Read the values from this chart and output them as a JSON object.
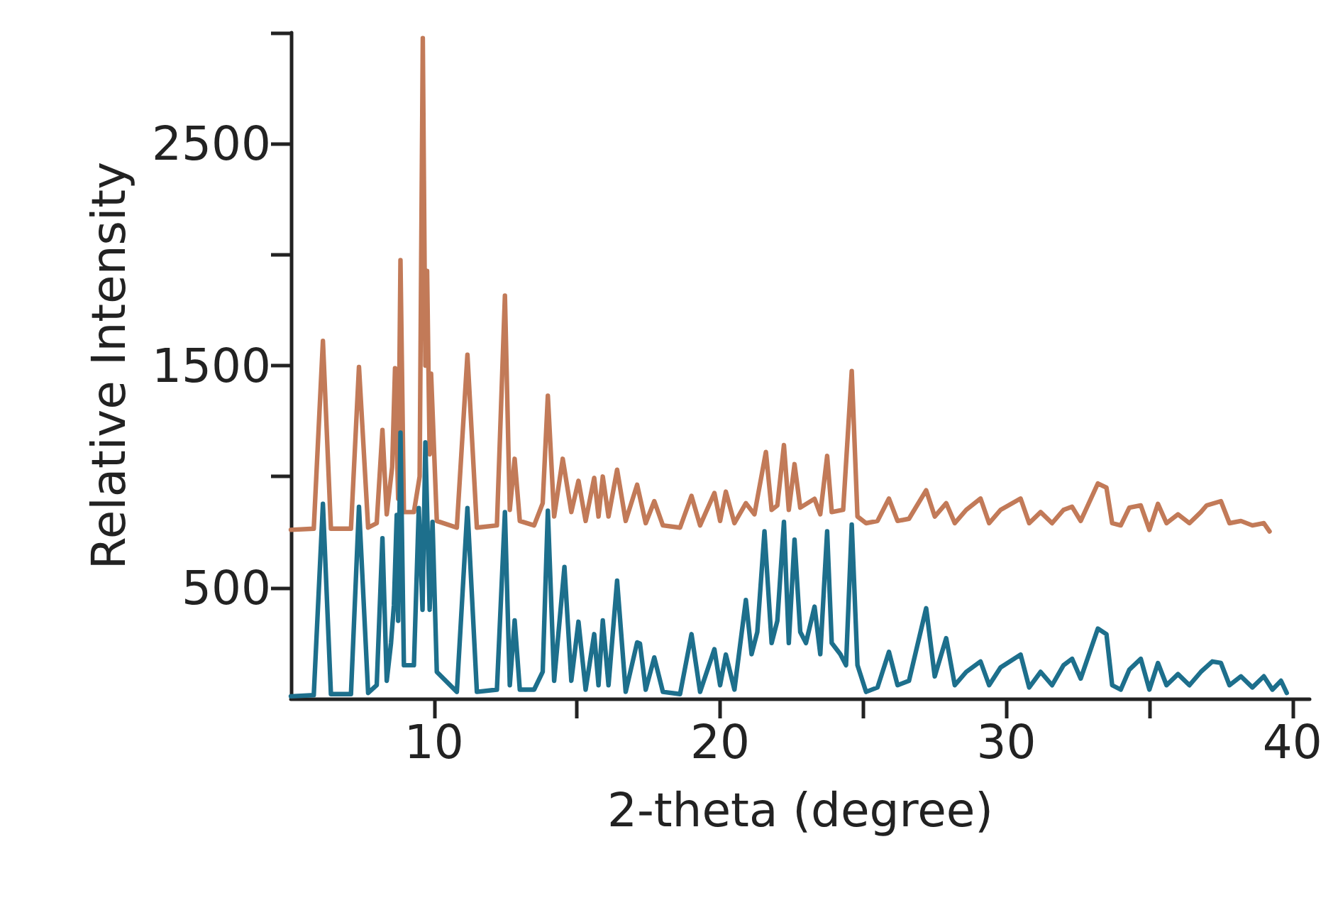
{
  "chart_data": {
    "type": "line",
    "xlabel": "2-theta (degree)",
    "ylabel": "Relative Intensity",
    "xlim": [
      5,
      40.6
    ],
    "xticks": [
      10,
      {
        "value": 15,
        "label": null
      },
      20,
      {
        "value": 25,
        "label": null
      },
      30,
      {
        "value": 35,
        "label": null
      },
      40
    ],
    "ylim": [
      0,
      3000
    ],
    "yticks": [
      500,
      {
        "value": 1000,
        "label": null
      },
      1500,
      {
        "value": 2000,
        "label": null
      },
      2500,
      {
        "value": 3000,
        "label": null
      }
    ],
    "grid": false,
    "marker": "none",
    "line_style": "solid",
    "series": [
      {
        "color": "#c27a58",
        "x": [
          5.0,
          5.8,
          6.12,
          6.4,
          7.1,
          7.38,
          7.7,
          8.0,
          8.2,
          8.35,
          8.54,
          8.64,
          8.75,
          8.83,
          8.95,
          9.3,
          9.5,
          9.61,
          9.7,
          9.76,
          9.85,
          9.9,
          10.1,
          10.8,
          11.17,
          11.5,
          12.2,
          12.48,
          12.65,
          12.82,
          13.0,
          13.5,
          13.8,
          13.98,
          14.2,
          14.5,
          14.8,
          15.05,
          15.3,
          15.6,
          15.75,
          15.9,
          16.1,
          16.4,
          16.7,
          17.1,
          17.4,
          17.7,
          18.0,
          18.6,
          19.0,
          19.3,
          19.8,
          20.0,
          20.2,
          20.5,
          20.9,
          21.2,
          21.6,
          21.8,
          22.0,
          22.23,
          22.4,
          22.6,
          22.8,
          23.3,
          23.5,
          23.74,
          23.9,
          24.3,
          24.6,
          24.8,
          25.1,
          25.5,
          25.9,
          26.2,
          26.6,
          27.2,
          27.5,
          27.9,
          28.2,
          28.6,
          29.1,
          29.4,
          29.8,
          30.5,
          30.8,
          31.2,
          31.6,
          32.0,
          32.3,
          32.6,
          33.2,
          33.5,
          33.7,
          34.0,
          34.3,
          34.7,
          35.0,
          35.3,
          35.6,
          36.0,
          36.4,
          36.8,
          37.0,
          37.5,
          37.8,
          38.2,
          38.6,
          39.0,
          39.2
        ],
        "values": [
          760,
          765,
          1611,
          765,
          765,
          1494,
          770,
          790,
          1210,
          830,
          1043,
          1488,
          900,
          1975,
          840,
          840,
          1000,
          2975,
          1500,
          1926,
          1100,
          1463,
          800,
          770,
          1549,
          770,
          780,
          1815,
          850,
          1080,
          800,
          780,
          880,
          1364,
          820,
          1080,
          840,
          981,
          800,
          994,
          820,
          1000,
          820,
          1031,
          800,
          963,
          790,
          889,
          780,
          770,
          913,
          780,
          926,
          800,
          932,
          790,
          880,
          830,
          1111,
          850,
          870,
          1142,
          850,
          1056,
          860,
          900,
          830,
          1093,
          840,
          850,
          1475,
          820,
          790,
          800,
          901,
          800,
          810,
          938,
          820,
          880,
          790,
          850,
          901,
          790,
          850,
          901,
          790,
          840,
          790,
          850,
          864,
          800,
          969,
          950,
          790,
          780,
          860,
          870,
          760,
          877,
          790,
          830,
          790,
          840,
          870,
          889,
          790,
          800,
          780,
          790,
          753
        ]
      },
      {
        "color": "#1d6f8c",
        "x": [
          5.0,
          5.8,
          6.12,
          6.4,
          7.1,
          7.38,
          7.7,
          8.0,
          8.2,
          8.35,
          8.5,
          8.6,
          8.7,
          8.75,
          8.83,
          8.95,
          9.3,
          9.47,
          9.6,
          9.7,
          9.85,
          9.95,
          10.1,
          10.8,
          11.17,
          11.5,
          12.2,
          12.48,
          12.65,
          12.82,
          13.0,
          13.5,
          13.8,
          13.98,
          14.2,
          14.56,
          14.8,
          15.05,
          15.3,
          15.6,
          15.75,
          15.9,
          16.1,
          16.4,
          16.7,
          17.1,
          17.2,
          17.4,
          17.7,
          18.0,
          18.6,
          19.0,
          19.3,
          19.8,
          20.0,
          20.2,
          20.5,
          20.9,
          21.1,
          21.3,
          21.55,
          21.8,
          22.0,
          22.23,
          22.4,
          22.6,
          22.8,
          23.0,
          23.3,
          23.5,
          23.74,
          23.9,
          24.2,
          24.4,
          24.6,
          24.8,
          25.1,
          25.5,
          25.9,
          26.2,
          26.6,
          27.2,
          27.5,
          27.9,
          28.2,
          28.6,
          29.1,
          29.4,
          29.8,
          30.5,
          30.8,
          31.2,
          31.6,
          32.0,
          32.3,
          32.6,
          33.2,
          33.5,
          33.7,
          34.0,
          34.3,
          34.7,
          35.0,
          35.3,
          35.6,
          36.0,
          36.4,
          36.8,
          37.2,
          37.5,
          37.8,
          38.2,
          38.6,
          39.0,
          39.3,
          39.6,
          39.8
        ],
        "values": [
          10,
          15,
          877,
          20,
          20,
          864,
          25,
          60,
          722,
          80,
          250,
          420,
          827,
          350,
          1198,
          150,
          150,
          858,
          400,
          1154,
          400,
          796,
          120,
          30,
          858,
          30,
          40,
          840,
          60,
          352,
          40,
          40,
          120,
          846,
          80,
          593,
          80,
          346,
          40,
          290,
          60,
          352,
          60,
          531,
          30,
          253,
          247,
          40,
          185,
          30,
          20,
          290,
          30,
          222,
          60,
          198,
          40,
          444,
          200,
          300,
          753,
          250,
          350,
          796,
          250,
          716,
          300,
          250,
          414,
          200,
          753,
          250,
          200,
          150,
          784,
          150,
          30,
          50,
          210,
          60,
          80,
          407,
          100,
          272,
          60,
          120,
          167,
          60,
          140,
          198,
          50,
          120,
          60,
          150,
          179,
          90,
          315,
          290,
          60,
          40,
          130,
          179,
          40,
          160,
          60,
          110,
          60,
          120,
          167,
          160,
          60,
          100,
          50,
          100,
          40,
          80,
          25
        ]
      }
    ]
  }
}
